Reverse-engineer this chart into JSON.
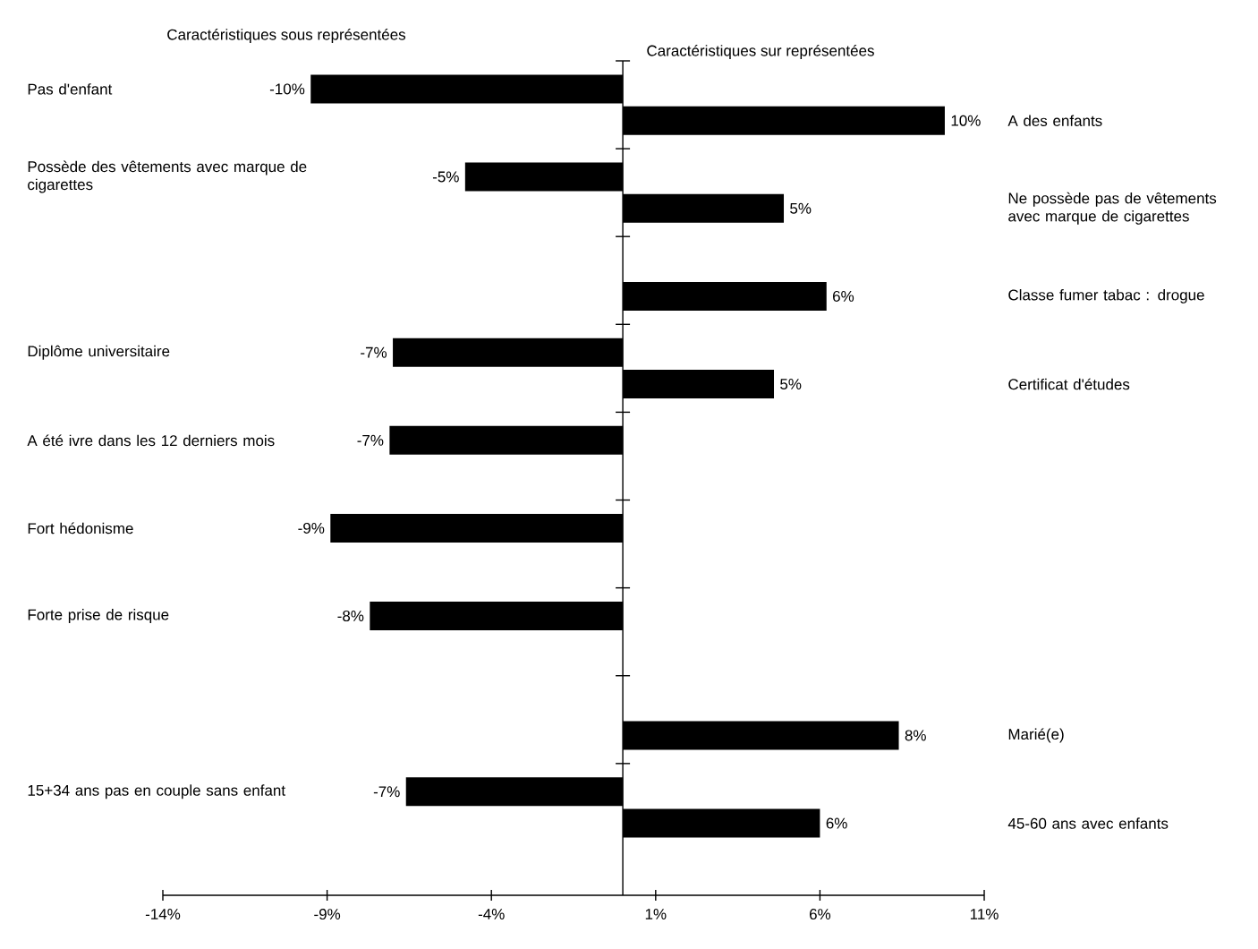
{
  "chart_data": {
    "type": "bar",
    "orientation": "horizontal",
    "categories": [
      "Pas d'enfant",
      "Possède des vêtements avec marque de cigarettes",
      null,
      "Diplôme universitaire",
      "A été ivre dans les 12 derniers mois",
      "Fort hédonisme",
      "Forte prise de risque",
      null,
      "15+34 ans pas en couple sans enfant"
    ],
    "series": [
      {
        "name": "Caractéristiques sous représentées",
        "color": "#000000",
        "values": [
          -9.5,
          -4.8,
          null,
          -7.0,
          -7.1,
          -8.9,
          -7.7,
          null,
          -6.6
        ],
        "value_labels": [
          "-10%",
          "-5%",
          null,
          "-7%",
          "-7%",
          "-9%",
          "-8%",
          null,
          "-7%"
        ]
      },
      {
        "name": "Caractéristiques sur représentées",
        "color": "#000000",
        "values": [
          9.8,
          4.9,
          6.2,
          4.6,
          null,
          null,
          null,
          8.4,
          6.0
        ],
        "value_labels": [
          "10%",
          "5%",
          "6%",
          "5%",
          null,
          null,
          null,
          "8%",
          "6%"
        ]
      }
    ],
    "annotations": [
      "A des enfants",
      "Ne possède pas de vêtements avec marque de cigarettes",
      "Classe fumer tabac : drogue",
      "Certificat d'études",
      "Marié(e)",
      "45-60 ans avec enfants"
    ],
    "xlim": [
      -14,
      11
    ],
    "xticks": [
      {
        "value": -14,
        "label": "-14%"
      },
      {
        "value": -9,
        "label": "-9%"
      },
      {
        "value": -4,
        "label": "-4%"
      },
      {
        "value": 1,
        "label": "1%"
      },
      {
        "value": 6,
        "label": "6%"
      },
      {
        "value": 11,
        "label": "11%"
      }
    ]
  }
}
